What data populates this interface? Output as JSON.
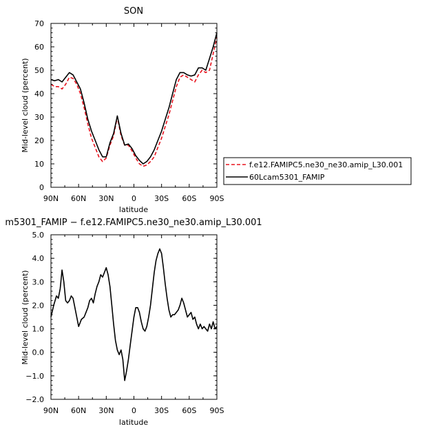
{
  "chart_data": [
    {
      "type": "line",
      "title": "SON",
      "xlabel": "latitude",
      "ylabel": "Mid-level cloud (percent)",
      "xlim": [
        90,
        -90
      ],
      "ylim": [
        0,
        70
      ],
      "xticks": [
        90,
        60,
        30,
        0,
        -30,
        -60,
        -90
      ],
      "xtick_labels": [
        "90N",
        "60N",
        "30N",
        "0",
        "30S",
        "60S",
        "90S"
      ],
      "yticks": [
        0,
        10,
        20,
        30,
        40,
        50,
        60,
        70
      ],
      "ytick_labels": [
        "0",
        "10",
        "20",
        "30",
        "40",
        "50",
        "60",
        "70"
      ],
      "legend_position": "right",
      "series": [
        {
          "name": "f.e12.FAMIPC5.ne30_ne30.amip_L30.001",
          "color": "#e8101b",
          "dash": "dashed",
          "x": [
            90,
            86,
            82,
            78,
            74,
            70,
            66,
            62,
            58,
            54,
            50,
            46,
            42,
            38,
            34,
            30,
            26,
            22,
            18,
            14,
            10,
            6,
            2,
            -2,
            -6,
            -10,
            -14,
            -18,
            -22,
            -26,
            -30,
            -34,
            -38,
            -42,
            -46,
            -50,
            -54,
            -58,
            -62,
            -66,
            -70,
            -74,
            -78,
            -82,
            -86,
            -90
          ],
          "values": [
            44,
            43,
            43,
            42,
            44,
            47,
            46.5,
            44,
            40,
            34,
            27,
            21,
            17,
            13,
            11,
            12.5,
            18,
            22,
            30,
            22,
            18,
            18,
            15.5,
            12.5,
            10,
            9,
            9.5,
            11,
            13,
            17,
            21,
            26,
            31,
            37,
            43,
            47,
            48,
            47,
            46,
            45,
            48,
            50,
            49,
            50,
            57,
            64
          ]
        },
        {
          "name": "60Lcam5301_FAMIP",
          "color": "#000000",
          "dash": "solid",
          "x": [
            90,
            86,
            82,
            78,
            74,
            70,
            66,
            62,
            58,
            54,
            50,
            46,
            42,
            38,
            34,
            30,
            26,
            22,
            18,
            14,
            10,
            6,
            2,
            -2,
            -6,
            -10,
            -14,
            -18,
            -22,
            -26,
            -30,
            -34,
            -38,
            -42,
            -46,
            -50,
            -54,
            -58,
            -62,
            -66,
            -70,
            -74,
            -78,
            -82,
            -86,
            -90
          ],
          "values": [
            46,
            45.5,
            46,
            45,
            47,
            49,
            48,
            45,
            42,
            36,
            29,
            24,
            20,
            16,
            13,
            13,
            19,
            23,
            30.5,
            23,
            18,
            18.5,
            16.5,
            13.5,
            11.5,
            10,
            11,
            13,
            16,
            20,
            24,
            29,
            34,
            40,
            46,
            49,
            49,
            48,
            47.5,
            48,
            51,
            51,
            50,
            55,
            60,
            66
          ]
        }
      ]
    },
    {
      "type": "line",
      "title": "m5301_FAMIP − f.e12.FAMIPC5.ne30_ne30.amip_L30.001",
      "xlabel": "latitude",
      "ylabel": "Mid-level cloud (percent)",
      "xlim": [
        90,
        -90
      ],
      "ylim": [
        -2,
        5
      ],
      "xticks": [
        90,
        60,
        30,
        0,
        -30,
        -60,
        -90
      ],
      "xtick_labels": [
        "90N",
        "60N",
        "30N",
        "0",
        "30S",
        "60S",
        "90S"
      ],
      "yticks": [
        -2,
        -1,
        0,
        1,
        2,
        3,
        4,
        5
      ],
      "ytick_labels": [
        "−2.0",
        "−1.0",
        "0.0",
        "1.0",
        "2.0",
        "3.0",
        "4.0",
        "5.0"
      ],
      "series": [
        {
          "color": "#000000",
          "dash": "solid",
          "x": [
            90,
            87,
            84,
            82,
            80,
            78,
            76,
            74,
            72,
            70,
            68,
            66,
            64,
            62,
            60,
            57,
            54,
            52,
            50,
            48,
            46,
            44,
            42,
            40,
            38,
            36,
            34,
            32,
            30,
            28,
            26,
            24,
            22,
            20,
            18,
            16,
            14,
            12,
            10,
            8,
            6,
            4,
            2,
            0,
            -2,
            -4,
            -6,
            -8,
            -10,
            -12,
            -14,
            -16,
            -18,
            -20,
            -22,
            -24,
            -26,
            -28,
            -30,
            -32,
            -34,
            -36,
            -38,
            -40,
            -42,
            -44,
            -46,
            -48,
            -50,
            -52,
            -54,
            -56,
            -58,
            -60,
            -62,
            -64,
            -66,
            -68,
            -70,
            -72,
            -74,
            -76,
            -78,
            -80,
            -82,
            -84,
            -86,
            -88,
            -90
          ],
          "values": [
            1.5,
            2.0,
            2.4,
            2.3,
            2.7,
            3.5,
            3.0,
            2.2,
            2.1,
            2.2,
            2.4,
            2.3,
            1.9,
            1.5,
            1.1,
            1.4,
            1.5,
            1.7,
            1.9,
            2.2,
            2.3,
            2.1,
            2.5,
            2.8,
            3.0,
            3.3,
            3.2,
            3.4,
            3.6,
            3.3,
            2.8,
            2.0,
            1.2,
            0.5,
            0.1,
            -0.1,
            0.1,
            -0.3,
            -1.2,
            -0.8,
            -0.3,
            0.3,
            0.9,
            1.5,
            1.9,
            1.9,
            1.7,
            1.3,
            1.0,
            0.9,
            1.1,
            1.5,
            2.0,
            2.7,
            3.4,
            3.9,
            4.2,
            4.4,
            4.2,
            3.6,
            2.9,
            2.3,
            1.8,
            1.5,
            1.6,
            1.6,
            1.7,
            1.8,
            2.0,
            2.3,
            2.1,
            1.8,
            1.5,
            1.6,
            1.7,
            1.4,
            1.5,
            1.2,
            1.0,
            1.2,
            1.0,
            1.1,
            1.0,
            0.9,
            1.2,
            1.0,
            1.3,
            1.0,
            1.1
          ]
        }
      ]
    }
  ]
}
